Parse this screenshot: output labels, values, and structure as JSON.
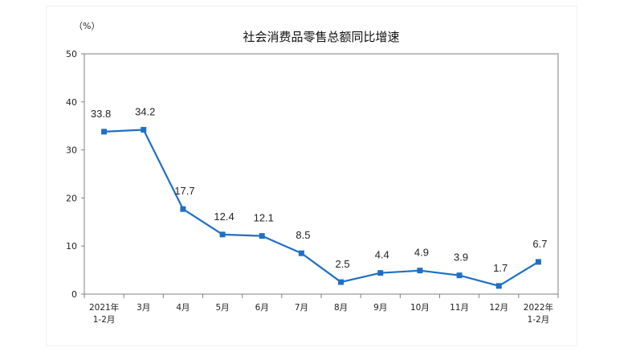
{
  "chart_data": {
    "type": "line",
    "title": "社会消费品零售总额同比增速",
    "unit_label": "（%）",
    "categories": [
      [
        "2021年",
        "1-2月"
      ],
      [
        "3月"
      ],
      [
        "4月"
      ],
      [
        "5月"
      ],
      [
        "6月"
      ],
      [
        "7月"
      ],
      [
        "8月"
      ],
      [
        "9月"
      ],
      [
        "10月"
      ],
      [
        "11月"
      ],
      [
        "12月"
      ],
      [
        "2022年",
        "1-2月"
      ]
    ],
    "values": [
      33.8,
      34.2,
      17.7,
      12.4,
      12.1,
      8.5,
      2.5,
      4.4,
      4.9,
      3.9,
      1.7,
      6.7
    ],
    "value_labels": [
      "33.8",
      "34.2",
      "17.7",
      "12.4",
      "12.1",
      "8.5",
      "2.5",
      "4.4",
      "4.9",
      "3.9",
      "1.7",
      "6.7"
    ],
    "ylim": [
      0,
      50
    ],
    "yticks": [
      0,
      10,
      20,
      30,
      40,
      50
    ],
    "ytick_labels": [
      "0",
      "10",
      "20",
      "30",
      "40",
      "50"
    ],
    "grid": false,
    "colors": {
      "series": "#1f6fc6",
      "axis": "#808080"
    }
  }
}
